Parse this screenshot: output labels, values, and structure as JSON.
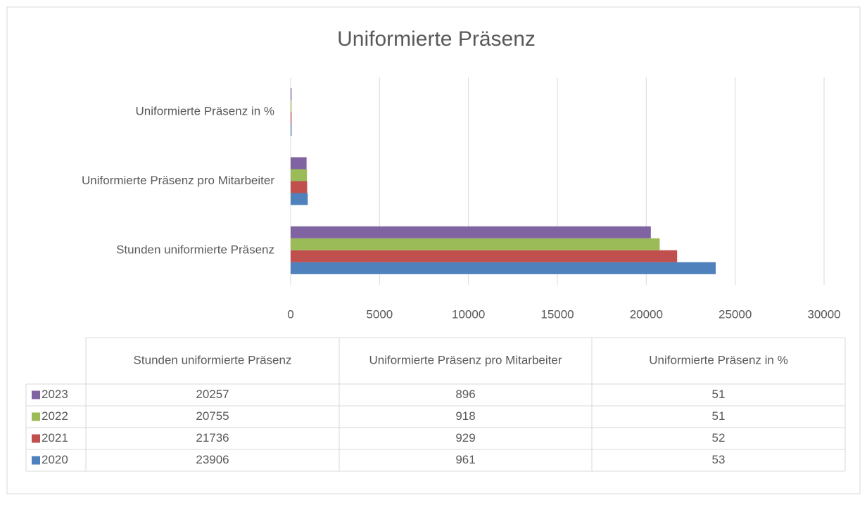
{
  "chart_data": {
    "type": "bar",
    "orientation": "horizontal",
    "title": "Uniformierte Präsenz",
    "categories": [
      "Stunden uniformierte Präsenz",
      "Uniformierte Präsenz pro Mitarbeiter",
      "Uniformierte Präsenz in %"
    ],
    "series": [
      {
        "name": "2020",
        "color": "#4f81bd",
        "values": [
          23906,
          961,
          53
        ]
      },
      {
        "name": "2021",
        "color": "#c0504d",
        "values": [
          21736,
          929,
          52
        ]
      },
      {
        "name": "2022",
        "color": "#9bbb59",
        "values": [
          20755,
          918,
          51
        ]
      },
      {
        "name": "2023",
        "color": "#8064a2",
        "values": [
          20257,
          896,
          51
        ]
      }
    ],
    "xlim": [
      0,
      30000
    ],
    "xticks": [
      0,
      5000,
      10000,
      15000,
      20000,
      25000,
      30000
    ],
    "grid": true
  }
}
